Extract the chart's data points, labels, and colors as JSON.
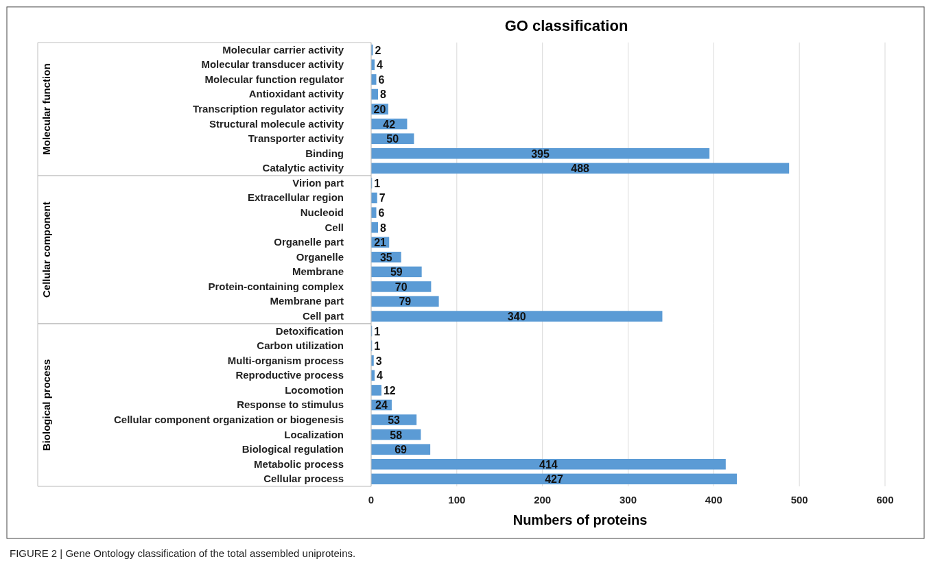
{
  "chart_data": [
    {
      "type": "bar",
      "orientation": "horizontal",
      "title": "GO classification",
      "ylabel": "Molecular function",
      "categories": [
        "Molecular carrier activity",
        "Molecular transducer activity",
        "Molecular function regulator",
        "Antioxidant activity",
        "Transcription regulator activity",
        "Structural molecule activity",
        "Transporter activity",
        "Binding",
        "Catalytic activity"
      ],
      "values": [
        2,
        4,
        6,
        8,
        20,
        42,
        50,
        395,
        488
      ],
      "color": "#5b9bd5",
      "xlim": [
        0,
        600
      ],
      "xticks": [
        0,
        100,
        200,
        300,
        400,
        500,
        600
      ],
      "grid": "x",
      "data_labels": true,
      "tick_labels": "y"
    },
    {
      "type": "bar",
      "orientation": "horizontal",
      "ylabel": "Cellular component",
      "categories": [
        "Virion part",
        "Extracellular region",
        "Nucleoid",
        "Cell",
        "Organelle part",
        "Organelle",
        "Membrane",
        "Protein-containing complex",
        "Membrane part",
        "Cell part"
      ],
      "values": [
        1,
        7,
        6,
        8,
        21,
        35,
        59,
        70,
        79,
        340
      ],
      "color": "#5b9bd5",
      "xlim": [
        0,
        600
      ],
      "xticks": [
        0,
        100,
        200,
        300,
        400,
        500,
        600
      ],
      "grid": "x",
      "data_labels": true,
      "tick_labels": "y"
    },
    {
      "type": "bar",
      "orientation": "horizontal",
      "ylabel": "Biological process",
      "xlabel": "Numbers of proteins",
      "categories": [
        "Detoxification",
        "Carbon utilization",
        "Multi-organism process",
        "Reproductive process",
        "Locomotion",
        "Response to stimulus",
        "Cellular component organization or biogenesis",
        "Localization",
        "Biological regulation",
        "Metabolic process",
        "Cellular process"
      ],
      "values": [
        1,
        1,
        3,
        4,
        12,
        24,
        53,
        58,
        69,
        414,
        427
      ],
      "color": "#5b9bd5",
      "xlim": [
        0,
        600
      ],
      "xticks": [
        0,
        100,
        200,
        300,
        400,
        500,
        600
      ],
      "grid": "x",
      "data_labels": true,
      "annotations": [
        "FIGURE 2 | Gene Ontology classification of the total assembled uniproteins."
      ]
    }
  ]
}
